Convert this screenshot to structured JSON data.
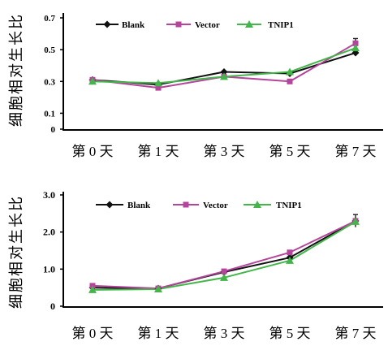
{
  "chart_data": [
    {
      "type": "line",
      "ylabel": "细胞相对生长比",
      "categories": [
        "第 0 天",
        "第 1 天",
        "第 3 天",
        "第 5 天",
        "第 7 天"
      ],
      "y_tick_labels": [
        "0.7",
        "0.5",
        "0.3",
        "0.1",
        "0"
      ],
      "ylim": [
        0,
        0.7
      ],
      "grid": false,
      "legend_position": "top",
      "series": [
        {
          "name": "Blank",
          "color": "#111111",
          "marker": "diamond",
          "values": [
            0.31,
            0.28,
            0.36,
            0.35,
            0.48
          ],
          "error": [
            0,
            0,
            0,
            0,
            0
          ]
        },
        {
          "name": "Vector",
          "color": "#b5459c",
          "marker": "square",
          "values": [
            0.31,
            0.26,
            0.33,
            0.3,
            0.54
          ],
          "error": [
            0,
            0,
            0,
            0,
            0.03
          ]
        },
        {
          "name": "TNIP1",
          "color": "#43b54a",
          "marker": "triangle",
          "values": [
            0.3,
            0.29,
            0.33,
            0.36,
            0.51
          ],
          "error": [
            0,
            0,
            0,
            0,
            0
          ]
        }
      ]
    },
    {
      "type": "line",
      "ylabel": "细胞相对生长比",
      "categories": [
        "第 0 天",
        "第 1 天",
        "第 3 天",
        "第 5 天",
        "第 7 天"
      ],
      "y_tick_labels": [
        "3.0",
        "2.0",
        "1.0",
        "0"
      ],
      "ylim": [
        0,
        3.0
      ],
      "grid": false,
      "legend_position": "top",
      "series": [
        {
          "name": "Blank",
          "color": "#111111",
          "marker": "diamond",
          "values": [
            0.5,
            0.48,
            0.92,
            1.31,
            2.3
          ],
          "error": [
            0,
            0,
            0,
            0,
            0.17
          ]
        },
        {
          "name": "Vector",
          "color": "#b5459c",
          "marker": "square",
          "values": [
            0.55,
            0.48,
            0.94,
            1.45,
            2.3
          ],
          "error": [
            0,
            0,
            0,
            0,
            0
          ]
        },
        {
          "name": "TNIP1",
          "color": "#43b54a",
          "marker": "triangle",
          "values": [
            0.44,
            0.46,
            0.77,
            1.23,
            2.28
          ],
          "error": [
            0,
            0,
            0,
            0,
            0
          ]
        }
      ]
    }
  ]
}
